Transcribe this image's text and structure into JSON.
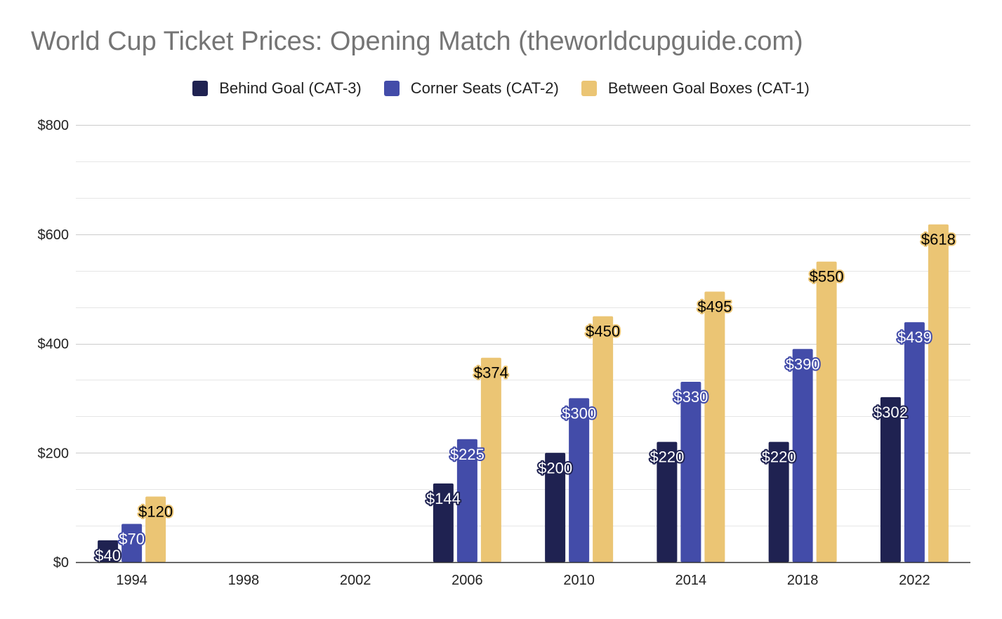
{
  "chart_data": {
    "type": "bar",
    "title": "World Cup Ticket Prices: Opening Match (theworldcupguide.com)",
    "xlabel": "",
    "ylabel": "",
    "categories": [
      "1994",
      "1998",
      "2002",
      "2006",
      "2010",
      "2014",
      "2018",
      "2022"
    ],
    "ylim": [
      0,
      800
    ],
    "yticks": [
      0,
      200,
      400,
      600,
      800
    ],
    "ytick_labels": [
      "$0",
      "$200",
      "$400",
      "$600",
      "$800"
    ],
    "minor_gridlines": true,
    "legend_position": "top",
    "series": [
      {
        "name": "Behind Goal (CAT-3)",
        "color": "#1f2251",
        "label_text_color": "#ffffff",
        "label_outline_color": "#1f2251",
        "values": [
          40,
          null,
          null,
          144,
          200,
          220,
          220,
          302
        ],
        "data_labels": [
          "$40",
          "",
          "",
          "$144",
          "$200",
          "$220",
          "$220",
          "$302"
        ]
      },
      {
        "name": "Corner Seats (CAT-2)",
        "color": "#434ca9",
        "label_text_color": "#ffffff",
        "label_outline_color": "#434ca9",
        "values": [
          70,
          null,
          null,
          225,
          300,
          330,
          390,
          439
        ],
        "data_labels": [
          "$70",
          "",
          "",
          "$225",
          "$300",
          "$330",
          "$390",
          "$439"
        ]
      },
      {
        "name": "Between Goal Boxes (CAT-1)",
        "color": "#ebc574",
        "label_text_color": "#000000",
        "label_outline_color": "#ebc574",
        "values": [
          120,
          null,
          null,
          374,
          450,
          495,
          550,
          618
        ],
        "data_labels": [
          "$120",
          "",
          "",
          "$374",
          "$450",
          "$495",
          "$550",
          "$618"
        ]
      }
    ]
  }
}
